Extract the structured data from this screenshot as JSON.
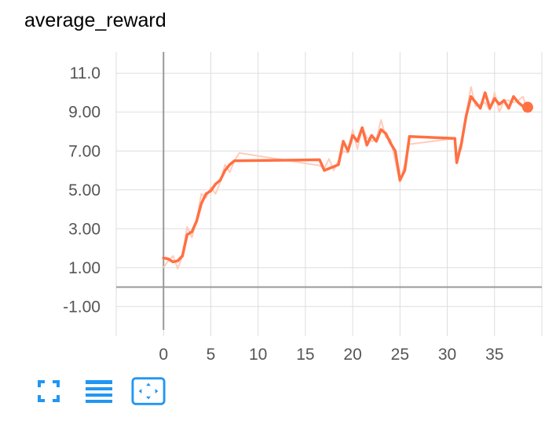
{
  "chart_data": {
    "type": "line",
    "title": "average_reward",
    "xlabel": "",
    "ylabel": "",
    "xlim": [
      -5,
      40
    ],
    "ylim": [
      -2.2,
      12.1
    ],
    "x_ticks": [
      0,
      5,
      10,
      15,
      20,
      25,
      30,
      35
    ],
    "x_tick_labels": [
      "0",
      "5",
      "10",
      "15",
      "20",
      "25",
      "30",
      "35"
    ],
    "y_ticks": [
      -1,
      1,
      3,
      5,
      7,
      9,
      11
    ],
    "y_tick_labels": [
      "-1.00",
      "1.00",
      "3.00",
      "5.00",
      "7.00",
      "9.00",
      "11.0"
    ],
    "grid": true,
    "series": [
      {
        "color": "#ff7043",
        "x": [
          0,
          0.5,
          1.0,
          1.5,
          2.0,
          2.5,
          3.0,
          3.5,
          4.0,
          4.5,
          5.0,
          5.5,
          6.0,
          6.5,
          7.0,
          7.5,
          8.0,
          16.5,
          17.0,
          17.5,
          18.0,
          18.5,
          19.0,
          19.5,
          20.0,
          20.5,
          21.0,
          21.5,
          22.0,
          22.5,
          23.0,
          23.5,
          24.0,
          24.5,
          25.0,
          25.5,
          26.0,
          30.8,
          31.0,
          31.5,
          32.0,
          32.5,
          33.0,
          33.5,
          34.0,
          34.5,
          35.0,
          35.5,
          36.0,
          36.5,
          37.0,
          37.5,
          38.0,
          38.5
        ],
        "y": [
          1.5,
          1.45,
          1.3,
          1.35,
          1.6,
          2.7,
          2.85,
          3.4,
          4.3,
          4.8,
          4.95,
          5.3,
          5.5,
          6.0,
          6.3,
          6.5,
          6.5,
          6.55,
          6.0,
          6.1,
          6.2,
          6.3,
          7.5,
          7.0,
          7.8,
          7.5,
          8.2,
          7.3,
          7.8,
          7.5,
          8.1,
          7.9,
          7.4,
          7.0,
          5.5,
          6.0,
          7.75,
          7.65,
          6.4,
          7.4,
          8.8,
          9.8,
          9.5,
          9.2,
          10.0,
          9.2,
          9.7,
          9.4,
          9.6,
          9.2,
          9.8,
          9.5,
          9.3,
          9.25
        ],
        "smoothed": true
      }
    ]
  },
  "toolbar": {
    "fullscreen_icon": "fullscreen-icon",
    "log_scale_icon": "list-icon",
    "fit_domain_icon": "fit-domain-icon"
  },
  "colors": {
    "line": "#ff7043",
    "raw_line": "#ffccbc",
    "grid": "#dddddd",
    "axis": "#999999",
    "accent": "#2196f3"
  }
}
